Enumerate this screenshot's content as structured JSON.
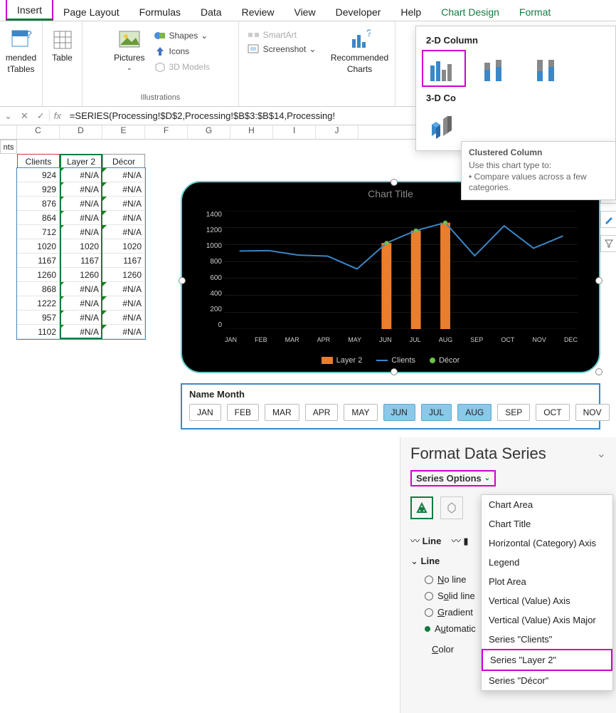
{
  "tabs": {
    "insert": "Insert",
    "pageLayout": "Page Layout",
    "formulas": "Formulas",
    "data": "Data",
    "review": "Review",
    "view": "View",
    "developer": "Developer",
    "help": "Help",
    "chartDesign": "Chart Design",
    "format": "Format"
  },
  "ribbon": {
    "mended": "mended",
    "tTables": "tTables",
    "table": "Table",
    "pictures": "Pictures",
    "shapes": "Shapes",
    "icons": "Icons",
    "models": "3D Models",
    "illustrations": "Illustrations",
    "smartart": "SmartArt",
    "screenshot": "Screenshot",
    "recCharts1": "Recommended",
    "recCharts2": "Charts"
  },
  "chartdrop": {
    "h2d": "2-D Column",
    "h3d": "3-D Co",
    "tipTitle": "Clustered Column",
    "tipDesc1": "Use this chart type to:",
    "tipDesc2": "• Compare values across a few categories."
  },
  "fx": {
    "fxlabel": "fx",
    "formula": "=SERIES(Processing!$D$2,Processing!$B$3:$B$14,Processing!"
  },
  "cols": {
    "nts": "nts",
    "C": "C",
    "D": "D",
    "E": "E",
    "F": "F",
    "G": "G",
    "H": "H",
    "I": "I",
    "J": "J"
  },
  "table": {
    "h": {
      "clients": "Clients",
      "layer2": "Layer 2",
      "decor": "Décor"
    },
    "clients": [
      "924",
      "929",
      "876",
      "864",
      "712",
      "1020",
      "1167",
      "1260",
      "868",
      "1222",
      "957",
      "1102"
    ],
    "layer2": [
      "#N/A",
      "#N/A",
      "#N/A",
      "#N/A",
      "#N/A",
      "1020",
      "1167",
      "1260",
      "#N/A",
      "#N/A",
      "#N/A",
      "#N/A"
    ],
    "decor": [
      "#N/A",
      "#N/A",
      "#N/A",
      "#N/A",
      "#N/A",
      "1020",
      "1167",
      "1260",
      "#N/A",
      "#N/A",
      "#N/A",
      "#N/A"
    ]
  },
  "chart": {
    "title": "Chart Title",
    "ylim": [
      0,
      1400
    ],
    "ystep": 200,
    "yticks": [
      "1400",
      "1200",
      "1000",
      "800",
      "600",
      "400",
      "200",
      "0"
    ],
    "months": [
      "JAN",
      "FEB",
      "MAR",
      "APR",
      "MAY",
      "JUN",
      "JUL",
      "AUG",
      "SEP",
      "OCT",
      "NOV",
      "DEC"
    ],
    "clients": [
      924,
      929,
      876,
      864,
      712,
      1020,
      1167,
      1260,
      868,
      1222,
      957,
      1102
    ],
    "bars": {
      "JUN": 1020,
      "JUL": 1167,
      "AUG": 1260
    },
    "colors": {
      "bar": "#e97e2e",
      "line": "#3a88c8",
      "decor": "#6cc24a",
      "bg": "#000000",
      "grid": "#333333",
      "text": "#cccccc"
    },
    "legend": {
      "layer2": "Layer 2",
      "clients": "Clients",
      "decor": "Décor"
    }
  },
  "slicer": {
    "title": "Name Month",
    "items": [
      "JAN",
      "FEB",
      "MAR",
      "APR",
      "MAY",
      "JUN",
      "JUL",
      "AUG",
      "SEP",
      "OCT",
      "NOV"
    ],
    "selected": [
      "JUN",
      "JUL",
      "AUG"
    ]
  },
  "fpane": {
    "title": "Format Data Series",
    "seropt": "Series Options",
    "line": "Line",
    "noLine": "No line",
    "solid": "Solid line",
    "gradient": "Gradient",
    "auto": "Automatic",
    "color": "Color"
  },
  "popup": {
    "chartArea": "Chart Area",
    "chartTitle": "Chart Title",
    "hAxis": "Horizontal (Category) Axis",
    "legend": "Legend",
    "plotArea": "Plot Area",
    "vAxis": "Vertical (Value) Axis",
    "vAxisMaj": "Vertical (Value) Axis Major",
    "sClients": "Series \"Clients\"",
    "sLayer2": "Series \"Layer 2\"",
    "sDecor": "Series \"Décor\""
  }
}
